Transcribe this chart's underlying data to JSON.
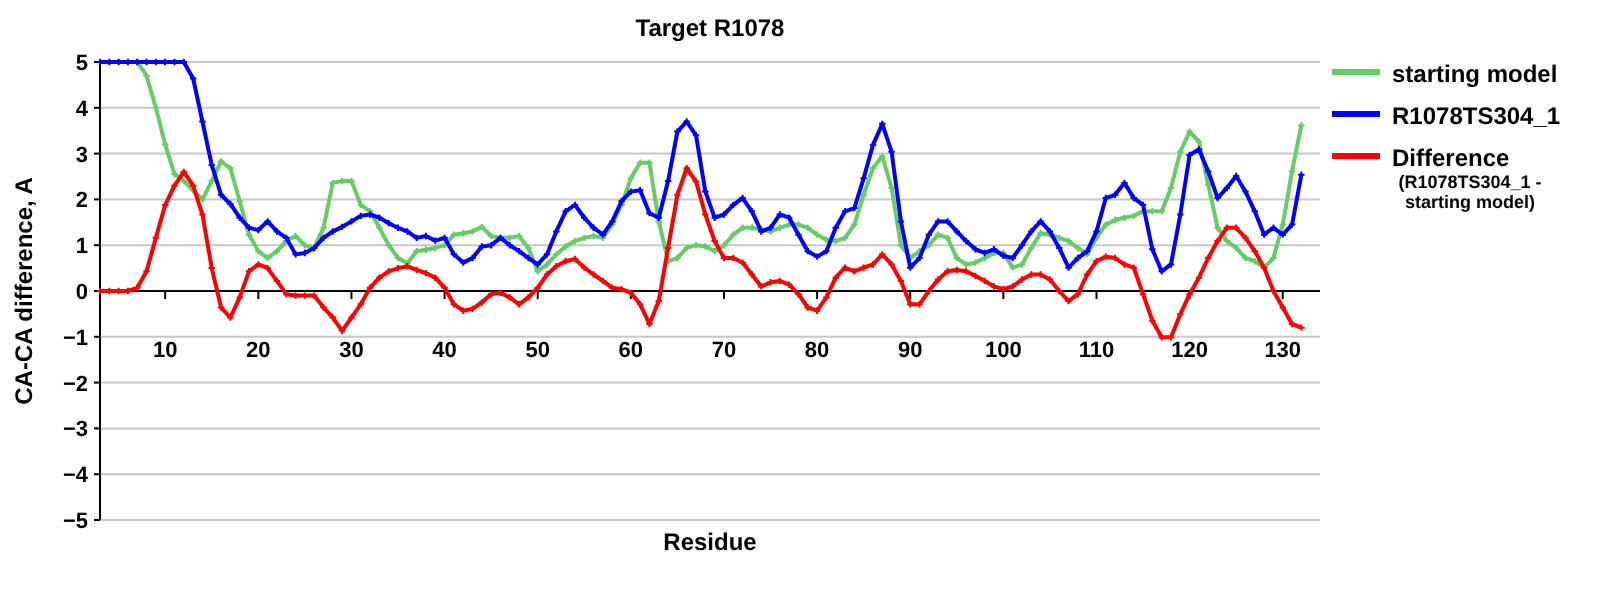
{
  "chart_data": {
    "type": "line",
    "title": "Target R1078",
    "xlabel": "Residue",
    "ylabel": "CA-CA difference, A",
    "x": [
      3,
      4,
      5,
      6,
      7,
      8,
      9,
      10,
      11,
      12,
      13,
      14,
      15,
      16,
      17,
      18,
      19,
      20,
      21,
      22,
      23,
      24,
      25,
      26,
      27,
      28,
      29,
      30,
      31,
      32,
      33,
      34,
      35,
      36,
      37,
      38,
      39,
      40,
      41,
      42,
      43,
      44,
      45,
      46,
      47,
      48,
      49,
      50,
      51,
      52,
      53,
      54,
      55,
      56,
      57,
      58,
      59,
      60,
      61,
      62,
      63,
      64,
      65,
      66,
      67,
      68,
      69,
      70,
      71,
      72,
      73,
      74,
      75,
      76,
      77,
      78,
      79,
      80,
      81,
      82,
      83,
      84,
      85,
      86,
      87,
      88,
      89,
      90,
      91,
      92,
      93,
      94,
      95,
      96,
      97,
      98,
      99,
      100,
      101,
      102,
      103,
      104,
      105,
      106,
      107,
      108,
      109,
      110,
      111,
      112,
      113,
      114,
      115,
      116,
      117,
      118,
      119,
      120,
      121,
      122,
      123,
      124,
      125,
      126,
      127,
      128,
      129,
      130,
      131,
      132
    ],
    "series": [
      {
        "name": "starting model",
        "color": "#66cc66",
        "values": [
          null,
          null,
          null,
          null,
          5,
          4.7,
          4.0,
          3.2,
          2.55,
          2.4,
          2.2,
          2.0,
          2.4,
          2.83,
          2.68,
          1.96,
          1.23,
          0.87,
          0.72,
          0.87,
          1.09,
          1.2,
          1.0,
          0.94,
          1.38,
          2.36,
          2.4,
          2.4,
          1.88,
          1.74,
          1.38,
          1.0,
          0.72,
          0.6,
          0.87,
          0.9,
          0.94,
          1.0,
          1.23,
          1.26,
          1.3,
          1.4,
          1.2,
          1.16,
          1.16,
          1.2,
          0.94,
          0.43,
          0.58,
          0.8,
          0.97,
          1.09,
          1.16,
          1.2,
          1.16,
          1.45,
          1.88,
          2.46,
          2.8,
          2.8,
          1.52,
          0.65,
          0.72,
          0.94,
          1.0,
          0.97,
          0.87,
          1.0,
          1.23,
          1.38,
          1.38,
          1.35,
          1.3,
          1.38,
          1.45,
          1.45,
          1.38,
          1.23,
          1.12,
          1.09,
          1.16,
          1.45,
          2.1,
          2.68,
          2.94,
          2.25,
          1.0,
          0.72,
          0.87,
          1.0,
          1.23,
          1.16,
          0.72,
          0.58,
          0.62,
          0.72,
          0.83,
          0.83,
          0.51,
          0.58,
          0.94,
          1.26,
          1.23,
          1.16,
          1.09,
          0.94,
          0.8,
          1.16,
          1.45,
          1.55,
          1.6,
          1.64,
          1.74,
          1.74,
          1.74,
          2.25,
          3.04,
          3.48,
          3.26,
          2.32,
          1.38,
          1.09,
          0.94,
          0.72,
          0.65,
          0.51,
          0.72,
          1.45,
          2.61,
          3.62
        ]
      },
      {
        "name": "R1078TS304_1",
        "color": "#0000ff",
        "values": [
          5,
          5,
          5,
          5,
          5,
          5,
          5,
          5,
          5,
          5,
          4.64,
          3.7,
          2.75,
          2.1,
          1.9,
          1.6,
          1.38,
          1.33,
          1.52,
          1.3,
          1.16,
          0.8,
          0.83,
          0.94,
          1.16,
          1.3,
          1.4,
          1.52,
          1.64,
          1.67,
          1.6,
          1.48,
          1.38,
          1.3,
          1.16,
          1.2,
          1.1,
          1.16,
          0.8,
          0.62,
          0.72,
          0.97,
          1.0,
          1.16,
          1.0,
          0.87,
          0.72,
          0.58,
          0.8,
          1.3,
          1.74,
          1.88,
          1.6,
          1.38,
          1.23,
          1.52,
          1.96,
          2.17,
          2.2,
          1.7,
          1.6,
          2.4,
          3.48,
          3.7,
          3.4,
          2.17,
          1.6,
          1.67,
          1.88,
          2.03,
          1.74,
          1.3,
          1.38,
          1.67,
          1.6,
          1.23,
          0.87,
          0.75,
          0.87,
          1.38,
          1.74,
          1.81,
          2.46,
          3.19,
          3.65,
          3.04,
          1.52,
          0.51,
          0.72,
          1.23,
          1.52,
          1.52,
          1.3,
          1.09,
          0.91,
          0.83,
          0.91,
          0.77,
          0.72,
          1.0,
          1.3,
          1.52,
          1.3,
          0.94,
          0.51,
          0.72,
          0.87,
          1.3,
          2.03,
          2.1,
          2.36,
          2.03,
          1.88,
          0.91,
          0.43,
          0.58,
          1.67,
          2.97,
          3.09,
          2.61,
          2.03,
          2.25,
          2.51,
          2.17,
          1.74,
          1.23,
          1.38,
          1.23,
          1.45,
          2.54
        ]
      },
      {
        "name": "Difference (R1078TS304_1 - starting model)",
        "color": "#ff0000",
        "values": [
          0,
          0,
          0,
          0,
          0.07,
          0.43,
          1.16,
          1.88,
          2.3,
          2.6,
          2.3,
          1.67,
          0.5,
          -0.36,
          -0.58,
          -0.14,
          0.43,
          0.58,
          0.5,
          0.22,
          -0.07,
          -0.1,
          -0.1,
          -0.1,
          -0.36,
          -0.58,
          -0.87,
          -0.58,
          -0.29,
          0.07,
          0.29,
          0.43,
          0.5,
          0.54,
          0.46,
          0.39,
          0.29,
          0.07,
          -0.29,
          -0.43,
          -0.39,
          -0.25,
          -0.07,
          -0.04,
          -0.14,
          -0.29,
          -0.14,
          0.07,
          0.36,
          0.54,
          0.65,
          0.7,
          0.51,
          0.36,
          0.22,
          0.07,
          0.04,
          -0.04,
          -0.29,
          -0.72,
          -0.22,
          0.94,
          2.1,
          2.68,
          2.39,
          1.67,
          1.09,
          0.72,
          0.72,
          0.62,
          0.36,
          0.1,
          0.19,
          0.22,
          0.14,
          -0.07,
          -0.36,
          -0.43,
          -0.14,
          0.29,
          0.51,
          0.43,
          0.51,
          0.58,
          0.8,
          0.58,
          0.22,
          -0.29,
          -0.29,
          0,
          0.25,
          0.43,
          0.46,
          0.43,
          0.33,
          0.22,
          0.1,
          0.04,
          0.1,
          0.25,
          0.36,
          0.36,
          0.25,
          0,
          -0.22,
          -0.07,
          0.36,
          0.65,
          0.75,
          0.72,
          0.58,
          0.51,
          -0.07,
          -0.65,
          -1.01,
          -1.01,
          -0.51,
          -0.07,
          0.29,
          0.72,
          1.09,
          1.38,
          1.38,
          1.16,
          0.87,
          0.51,
          0,
          -0.36,
          -0.72,
          -0.8
        ]
      }
    ],
    "xlim": [
      3,
      134
    ],
    "xticks": [
      10,
      20,
      30,
      40,
      50,
      60,
      70,
      80,
      90,
      100,
      110,
      120,
      130
    ],
    "ylim": [
      -5,
      5
    ],
    "yticks": [
      -5,
      -4,
      -3,
      -2,
      -1,
      0,
      1,
      2,
      3,
      4,
      5
    ],
    "grid": "y",
    "legend": "right",
    "marker": "cross",
    "line_style": "solid"
  }
}
